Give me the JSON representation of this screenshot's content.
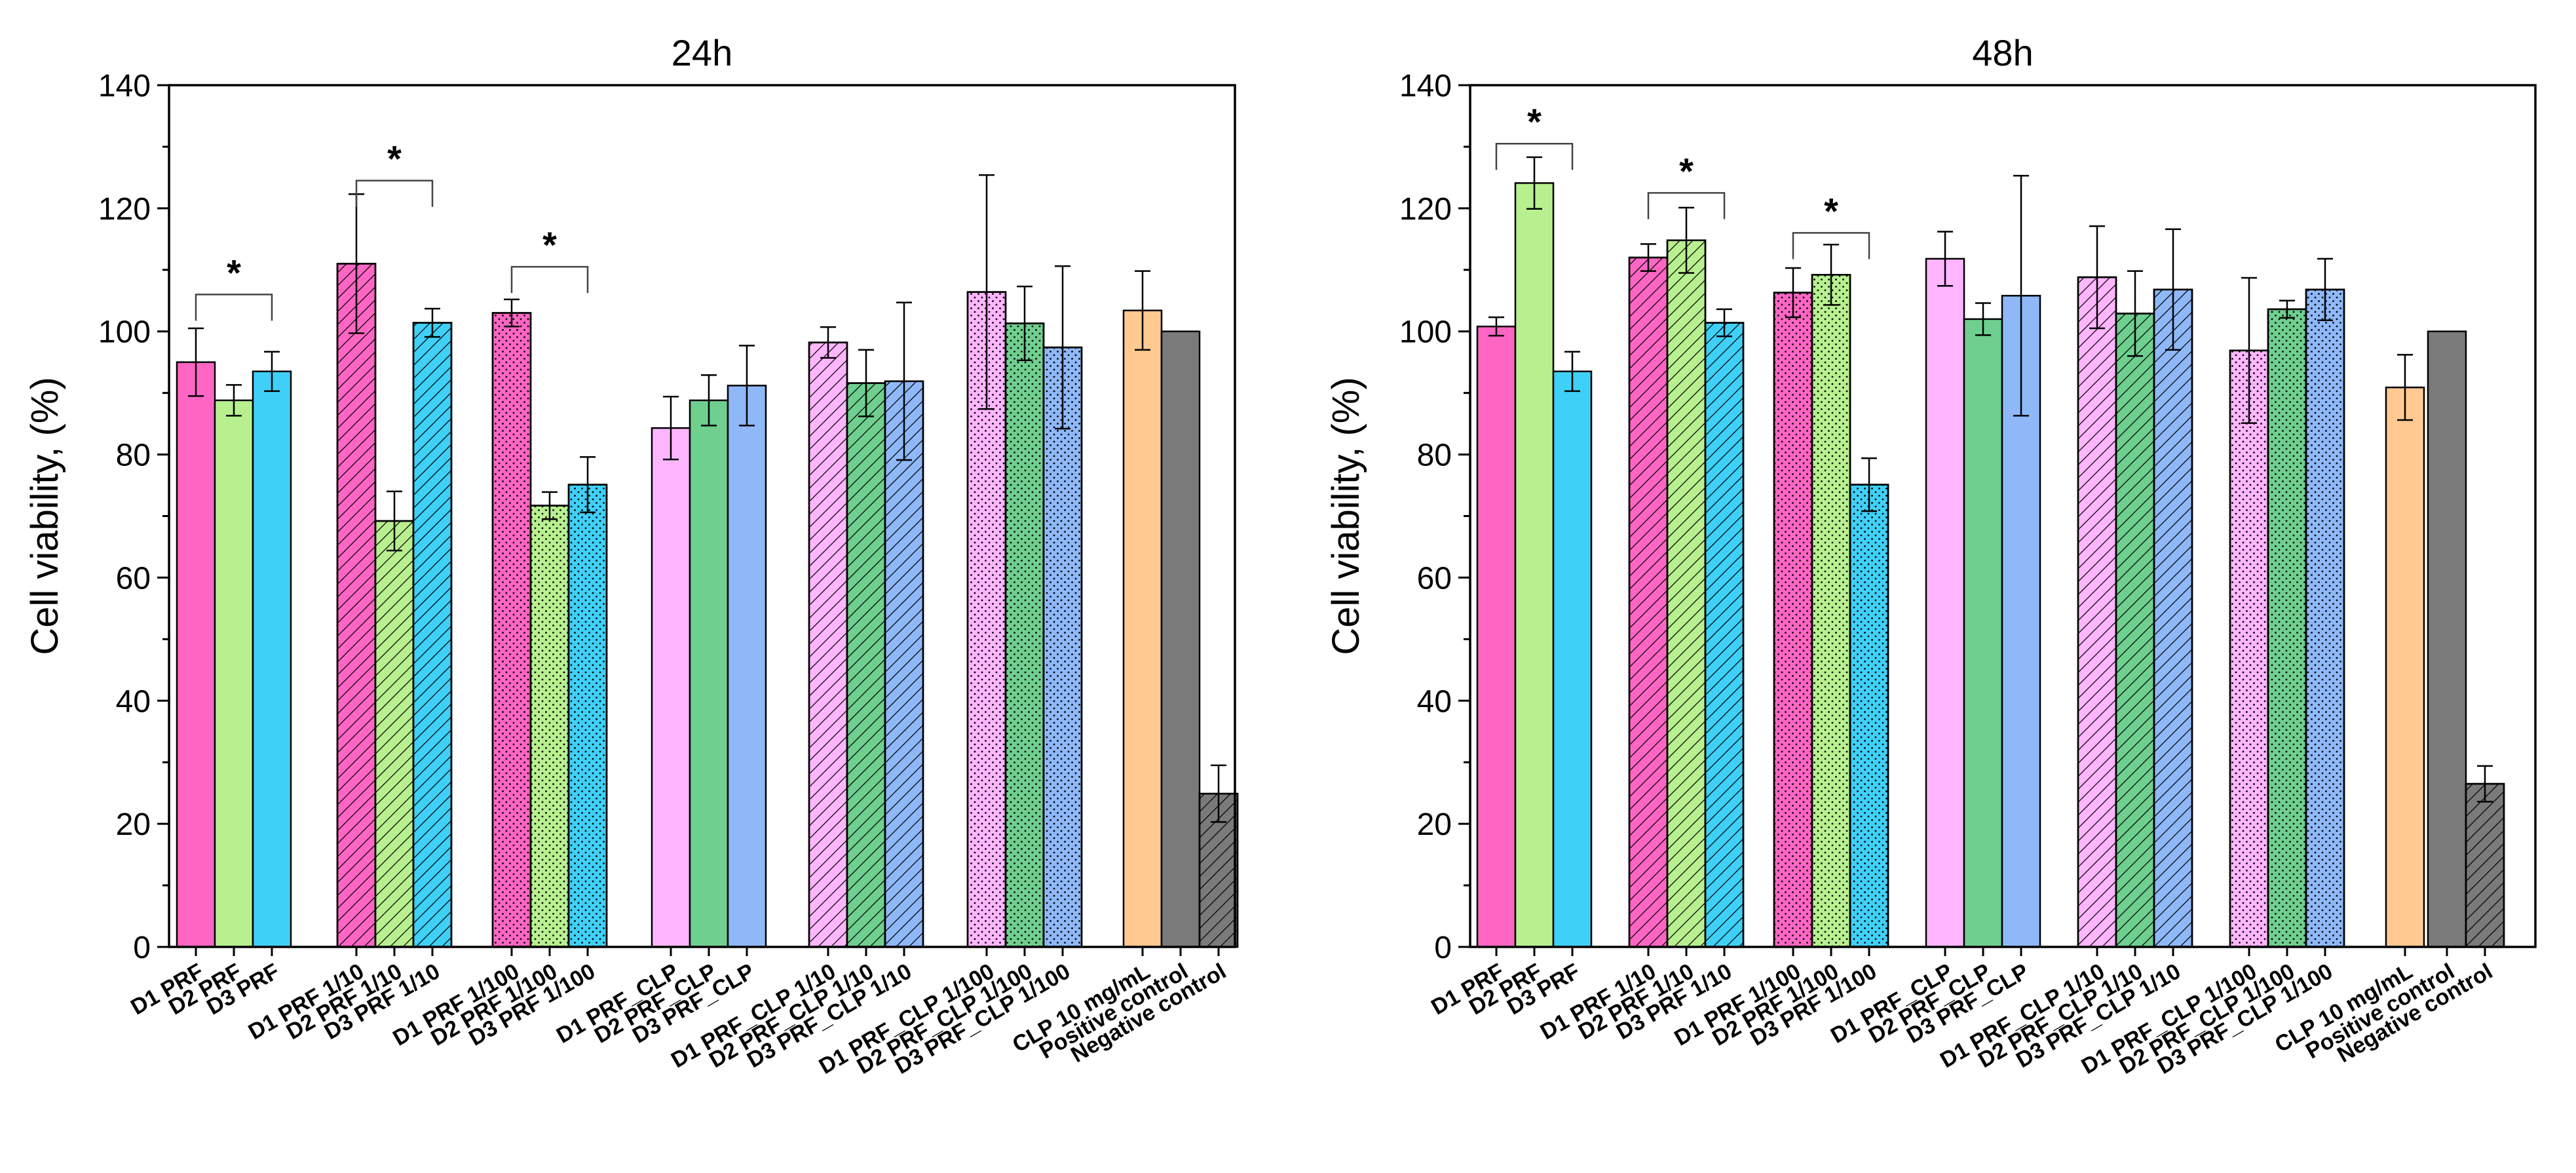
{
  "chart_data": [
    {
      "type": "bar",
      "title": "24h",
      "xlabel": "",
      "ylabel": "Cell viability, (%)",
      "ylim": [
        0,
        140
      ],
      "yticks": [
        0,
        20,
        40,
        60,
        80,
        100,
        120,
        140
      ],
      "categories": [
        "D1 PRF",
        "D2 PRF",
        "D3 PRF",
        "D1 PRF 1/10",
        "D2 PRF 1/10",
        "D3 PRF 1/10",
        "D1 PRF 1/100",
        "D2 PRF 1/100",
        "D3 PRF 1/100",
        "D1 PRF_CLP",
        "D2 PRF_CLP",
        "D3 PRF_CLP",
        "D1 PRF_CLP 1/10",
        "D2 PRF_CLP 1/10",
        "D3 PRF_CLP 1/10",
        "D1 PRF_CLP 1/100",
        "D2 PRF_CLP 1/100",
        "D3 PRF_CLP 1/100",
        "CLP 10 mg/mL",
        "Positive control",
        "Negative control"
      ],
      "values": [
        95,
        88.8,
        93.5,
        111,
        69.2,
        101.4,
        103,
        71.7,
        75.1,
        84.3,
        88.8,
        91.2,
        98.2,
        91.6,
        91.9,
        106.4,
        101.3,
        97.4,
        103.4,
        100,
        24.9
      ],
      "errors": [
        5.5,
        2.5,
        3.2,
        11.3,
        4.8,
        2.3,
        2.2,
        2.2,
        4.5,
        5.1,
        4.1,
        6.5,
        2.5,
        5.4,
        12.8,
        19,
        6,
        13.2,
        6.4,
        0,
        4.6
      ],
      "significance": [
        {
          "groups": [
            0,
            2
          ],
          "label": "*",
          "level": 106
        },
        {
          "groups": [
            3,
            5
          ],
          "label": "*",
          "level": 124.5
        },
        {
          "groups": [
            6,
            8
          ],
          "label": "*",
          "level": 110.5
        }
      ]
    },
    {
      "type": "bar",
      "title": "48h",
      "xlabel": "",
      "ylabel": "Cell viability, (%)",
      "ylim": [
        0,
        140
      ],
      "yticks": [
        0,
        20,
        40,
        60,
        80,
        100,
        120,
        140
      ],
      "categories": [
        "D1 PRF",
        "D2 PRF",
        "D3 PRF",
        "D1 PRF 1/10",
        "D2 PRF 1/10",
        "D3 PRF 1/10",
        "D1 PRF 1/100",
        "D2 PRF 1/100",
        "D3 PRF 1/100",
        "D1 PRF_CLP",
        "D2 PRF_CLP",
        "D3 PRF_CLP",
        "D1 PRF_CLP 1/10",
        "D2 PRF_CLP 1/10",
        "D3 PRF_CLP 1/10",
        "D1 PRF_CLP 1/100",
        "D2 PRF_CLP 1/100",
        "D3 PRF_CLP 1/100",
        "CLP 10 mg/mL",
        "Positive control",
        "Negative control"
      ],
      "values": [
        100.8,
        124.1,
        93.5,
        112,
        114.8,
        101.4,
        106.3,
        109.2,
        75.1,
        111.8,
        102,
        105.8,
        108.8,
        102.9,
        106.8,
        96.9,
        103.6,
        106.8,
        90.9,
        100,
        26.5
      ],
      "errors": [
        1.5,
        4.2,
        3.2,
        2.2,
        5.3,
        2.2,
        4,
        4.9,
        4.3,
        4.4,
        2.6,
        19.5,
        8.3,
        6.9,
        9.8,
        11.8,
        1.4,
        5,
        5.3,
        0,
        2.9
      ],
      "significance": [
        {
          "groups": [
            0,
            2
          ],
          "label": "*",
          "level": 130.5
        },
        {
          "groups": [
            3,
            5
          ],
          "label": "*",
          "level": 122.5
        },
        {
          "groups": [
            6,
            8
          ],
          "label": "*",
          "level": 116
        }
      ]
    }
  ],
  "style": {
    "colors": [
      "#ff66c4",
      "#b8f08f",
      "#3fd0f7",
      "#ff66c4",
      "#b8f08f",
      "#3fd0f7",
      "#ff66c4",
      "#b8f08f",
      "#3fd0f7",
      "#ffb6ff",
      "#6fcf8f",
      "#8fb8f8",
      "#ffb6ff",
      "#6fcf8f",
      "#8fb8f8",
      "#ffb6ff",
      "#6fcf8f",
      "#8fb8f8",
      "#ffc991",
      "#7a7a7a",
      "#7a7a7a"
    ],
    "patterns": [
      "solid",
      "solid",
      "solid",
      "hatch",
      "hatch",
      "hatch",
      "dots",
      "dots",
      "dots",
      "solid",
      "solid",
      "solid",
      "hatch",
      "hatch",
      "hatch",
      "dots",
      "dots",
      "dots",
      "solid",
      "solid",
      "hatch"
    ],
    "axis_color": "#000000",
    "bar_outline": "#000000"
  }
}
